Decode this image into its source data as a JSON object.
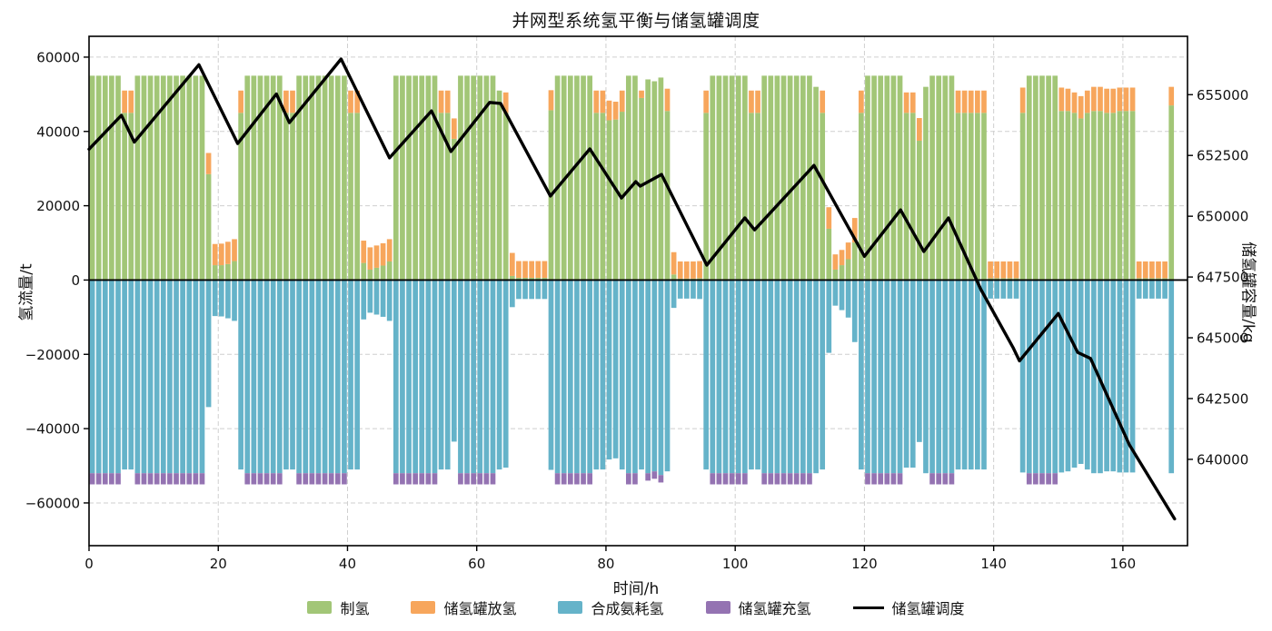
{
  "title": "并网型系统氢平衡与储氢罐调度",
  "axes": {
    "x": {
      "label": "时间/h",
      "ticks": [
        0,
        20,
        40,
        60,
        80,
        100,
        120,
        140,
        160
      ],
      "lim": [
        0,
        170
      ]
    },
    "y_left": {
      "label": "氢流量/t",
      "ticks": [
        -60000,
        -40000,
        -20000,
        0,
        20000,
        40000,
        60000
      ],
      "lim": [
        -71500,
        65600
      ]
    },
    "y_right": {
      "label": "储氢罐容量/kg",
      "ticks": [
        640000,
        642500,
        645000,
        647500,
        650000,
        652500,
        655000
      ],
      "lim": [
        636450,
        657400
      ]
    }
  },
  "legend": [
    {
      "label": "制氢",
      "type": "patch",
      "color": "#a2c677"
    },
    {
      "label": "储氢罐放氢",
      "type": "patch",
      "color": "#f7a65c"
    },
    {
      "label": "合成氨耗氢",
      "type": "patch",
      "color": "#65b3c9"
    },
    {
      "label": "储氢罐充氢",
      "type": "patch",
      "color": "#9473b2"
    },
    {
      "label": "储氢罐调度",
      "type": "line",
      "color": "#000000"
    }
  ],
  "chart_data": {
    "type": "bar+line",
    "x_hours": 168,
    "grid": "dashed",
    "zero_line": true,
    "series": [
      {
        "name": "制氢",
        "type": "bar",
        "stack": "positive-base",
        "color": "#a2c677",
        "values": [
          55000,
          55000,
          55000,
          55000,
          55000,
          45000,
          45000,
          55000,
          55000,
          55000,
          55000,
          55000,
          55000,
          55000,
          55000,
          55000,
          55000,
          55000,
          28500,
          4000,
          4000,
          4300,
          5100,
          45000,
          55000,
          55000,
          55000,
          55000,
          55000,
          55000,
          45000,
          45000,
          55000,
          55000,
          55000,
          55000,
          55000,
          55000,
          55000,
          55000,
          45000,
          45000,
          4600,
          2800,
          3300,
          3900,
          5000,
          55000,
          55000,
          55000,
          55000,
          55000,
          55000,
          55000,
          45000,
          45000,
          38000,
          55000,
          55000,
          55000,
          55000,
          55000,
          55000,
          51000,
          45000,
          1100,
          600,
          600,
          600,
          600,
          600,
          45700,
          55000,
          55000,
          55000,
          55000,
          55000,
          55000,
          45000,
          45000,
          43000,
          43200,
          45300,
          55000,
          55000,
          49000,
          54000,
          53500,
          54500,
          45500,
          1500,
          400,
          400,
          400,
          500,
          45000,
          55000,
          55000,
          55000,
          55000,
          55000,
          55000,
          45000,
          45000,
          55000,
          55000,
          55000,
          55000,
          55000,
          55000,
          55000,
          55000,
          52000,
          45000,
          13800,
          2800,
          4000,
          5600,
          10100,
          45000,
          55000,
          55000,
          55000,
          55000,
          55000,
          55000,
          45000,
          45000,
          37500,
          52000,
          55000,
          55000,
          55000,
          55000,
          45000,
          45000,
          45000,
          45000,
          45000,
          500,
          500,
          500,
          500,
          500,
          45000,
          55000,
          55000,
          55000,
          55000,
          55000,
          45500,
          45500,
          45000,
          43500,
          45000,
          45500,
          45500,
          45000,
          45000,
          45500,
          45500,
          45500,
          500,
          500,
          500,
          500,
          500,
          47000
        ]
      },
      {
        "name": "储氢罐放氢",
        "type": "bar",
        "stack": "positive-top",
        "color": "#f7a65c",
        "values": [
          0,
          0,
          0,
          0,
          0,
          6000,
          6000,
          0,
          0,
          0,
          0,
          0,
          0,
          0,
          0,
          0,
          0,
          0,
          5700,
          5700,
          5800,
          6000,
          5900,
          6000,
          0,
          0,
          0,
          0,
          0,
          0,
          6000,
          6000,
          0,
          0,
          0,
          0,
          0,
          0,
          0,
          0,
          6000,
          6000,
          6000,
          6000,
          6000,
          6000,
          6000,
          0,
          0,
          0,
          0,
          0,
          0,
          0,
          6000,
          6000,
          5500,
          0,
          0,
          0,
          0,
          0,
          0,
          0,
          5500,
          6200,
          4500,
          4500,
          4500,
          4500,
          4500,
          5400,
          0,
          0,
          0,
          0,
          0,
          0,
          6000,
          6000,
          5300,
          4800,
          5700,
          0,
          0,
          2000,
          0,
          0,
          0,
          6000,
          6000,
          4600,
          4600,
          4600,
          4600,
          6000,
          0,
          0,
          0,
          0,
          0,
          0,
          6000,
          6000,
          0,
          0,
          0,
          0,
          0,
          0,
          0,
          0,
          0,
          6000,
          5800,
          4100,
          4100,
          4500,
          6600,
          6000,
          0,
          0,
          0,
          0,
          0,
          0,
          5500,
          5500,
          6100,
          0,
          0,
          0,
          0,
          0,
          6000,
          6000,
          6000,
          6000,
          6000,
          4500,
          4500,
          4500,
          4500,
          4500,
          6800,
          0,
          0,
          0,
          0,
          0,
          6300,
          6000,
          5500,
          6000,
          6000,
          6500,
          6500,
          6500,
          6500,
          6300,
          6300,
          6300,
          4500,
          4500,
          4500,
          4500,
          4500,
          5000
        ]
      },
      {
        "name": "合成氨耗氢",
        "type": "bar",
        "stack": "negative-base",
        "color": "#65b3c9",
        "values": [
          -52000,
          -52000,
          -52000,
          -52000,
          -52000,
          -51000,
          -51000,
          -52000,
          -52000,
          -52000,
          -52000,
          -52000,
          -52000,
          -52000,
          -52000,
          -52000,
          -52000,
          -52000,
          -34200,
          -9700,
          -9800,
          -10300,
          -11000,
          -51000,
          -52000,
          -52000,
          -52000,
          -52000,
          -52000,
          -52000,
          -51000,
          -51000,
          -52000,
          -52000,
          -52000,
          -52000,
          -52000,
          -52000,
          -52000,
          -52000,
          -51000,
          -51000,
          -10600,
          -8800,
          -9300,
          -9900,
          -11000,
          -52000,
          -52000,
          -52000,
          -52000,
          -52000,
          -52000,
          -52000,
          -51000,
          -51000,
          -43500,
          -52000,
          -52000,
          -52000,
          -52000,
          -52000,
          -52000,
          -51000,
          -50500,
          -7300,
          -5100,
          -5100,
          -5100,
          -5100,
          -5100,
          -51100,
          -52000,
          -52000,
          -52000,
          -52000,
          -52000,
          -52000,
          -51000,
          -51000,
          -48300,
          -48000,
          -51000,
          -52000,
          -52000,
          -51000,
          -52000,
          -51500,
          -52500,
          -51500,
          -7500,
          -5000,
          -5000,
          -5000,
          -5100,
          -51000,
          -52000,
          -52000,
          -52000,
          -52000,
          -52000,
          -52000,
          -51000,
          -51000,
          -52000,
          -52000,
          -52000,
          -52000,
          -52000,
          -52000,
          -52000,
          -52000,
          -52000,
          -51000,
          -19600,
          -6900,
          -8100,
          -10100,
          -16700,
          -51000,
          -52000,
          -52000,
          -52000,
          -52000,
          -52000,
          -52000,
          -50500,
          -50500,
          -43600,
          -52000,
          -52000,
          -52000,
          -52000,
          -52000,
          -51000,
          -51000,
          -51000,
          -51000,
          -51000,
          -5000,
          -5000,
          -5000,
          -5000,
          -5000,
          -51800,
          -52000,
          -52000,
          -52000,
          -52000,
          -52000,
          -51800,
          -51500,
          -50500,
          -49500,
          -51000,
          -52000,
          -52000,
          -51500,
          -51500,
          -51800,
          -51800,
          -51800,
          -5000,
          -5000,
          -5000,
          -5000,
          -5000,
          -52000
        ]
      },
      {
        "name": "储氢罐充氢",
        "type": "bar",
        "stack": "negative-below",
        "color": "#9473b2",
        "values": [
          3000,
          3000,
          3000,
          3000,
          3000,
          0,
          0,
          3000,
          3000,
          3000,
          3000,
          3000,
          3000,
          3000,
          3000,
          3000,
          3000,
          3000,
          0,
          0,
          0,
          0,
          0,
          0,
          3000,
          3000,
          3000,
          3000,
          3000,
          3000,
          0,
          0,
          3000,
          3000,
          3000,
          3000,
          3000,
          3000,
          3000,
          3000,
          0,
          0,
          0,
          0,
          0,
          0,
          0,
          3000,
          3000,
          3000,
          3000,
          3000,
          3000,
          3000,
          0,
          0,
          0,
          3000,
          3000,
          3000,
          3000,
          3000,
          3000,
          0,
          0,
          0,
          0,
          0,
          0,
          0,
          0,
          0,
          3000,
          3000,
          3000,
          3000,
          3000,
          3000,
          0,
          0,
          0,
          0,
          0,
          3000,
          3000,
          0,
          2000,
          2000,
          2000,
          0,
          0,
          0,
          0,
          0,
          0,
          0,
          3000,
          3000,
          3000,
          3000,
          3000,
          3000,
          0,
          0,
          3000,
          3000,
          3000,
          3000,
          3000,
          3000,
          3000,
          3000,
          0,
          0,
          0,
          0,
          0,
          0,
          0,
          0,
          3000,
          3000,
          3000,
          3000,
          3000,
          3000,
          0,
          0,
          0,
          0,
          3000,
          3000,
          3000,
          3000,
          0,
          0,
          0,
          0,
          0,
          0,
          0,
          0,
          0,
          0,
          0,
          3000,
          3000,
          3000,
          3000,
          3000,
          0,
          0,
          0,
          0,
          0,
          0,
          0,
          0,
          0,
          0,
          0,
          0,
          0,
          0,
          0,
          0,
          0,
          0
        ]
      },
      {
        "name": "储氢罐调度",
        "type": "line",
        "axis": "right",
        "color": "#000000",
        "vertices": [
          [
            0,
            652760
          ],
          [
            5,
            654150
          ],
          [
            7,
            653050
          ],
          [
            17,
            656230
          ],
          [
            23,
            652990
          ],
          [
            29,
            655030
          ],
          [
            31,
            653850
          ],
          [
            39,
            656465
          ],
          [
            46.5,
            652400
          ],
          [
            53,
            654330
          ],
          [
            56,
            652660
          ],
          [
            62,
            654680
          ],
          [
            63.7,
            654640
          ],
          [
            71.4,
            650830
          ],
          [
            77.5,
            652770
          ],
          [
            82.4,
            650750
          ],
          [
            84.6,
            651420
          ],
          [
            85.3,
            651240
          ],
          [
            88.6,
            651720
          ],
          [
            95.6,
            647990
          ],
          [
            101.5,
            649930
          ],
          [
            103,
            649440
          ],
          [
            112.2,
            652090
          ],
          [
            120,
            648350
          ],
          [
            125.6,
            650260
          ],
          [
            129.2,
            648550
          ],
          [
            133,
            649930
          ],
          [
            138,
            647000
          ],
          [
            143,
            644600
          ],
          [
            144,
            644050
          ],
          [
            150,
            646000
          ],
          [
            153,
            644400
          ],
          [
            155,
            644150
          ],
          [
            161,
            640600
          ],
          [
            168,
            637550
          ]
        ]
      }
    ]
  }
}
